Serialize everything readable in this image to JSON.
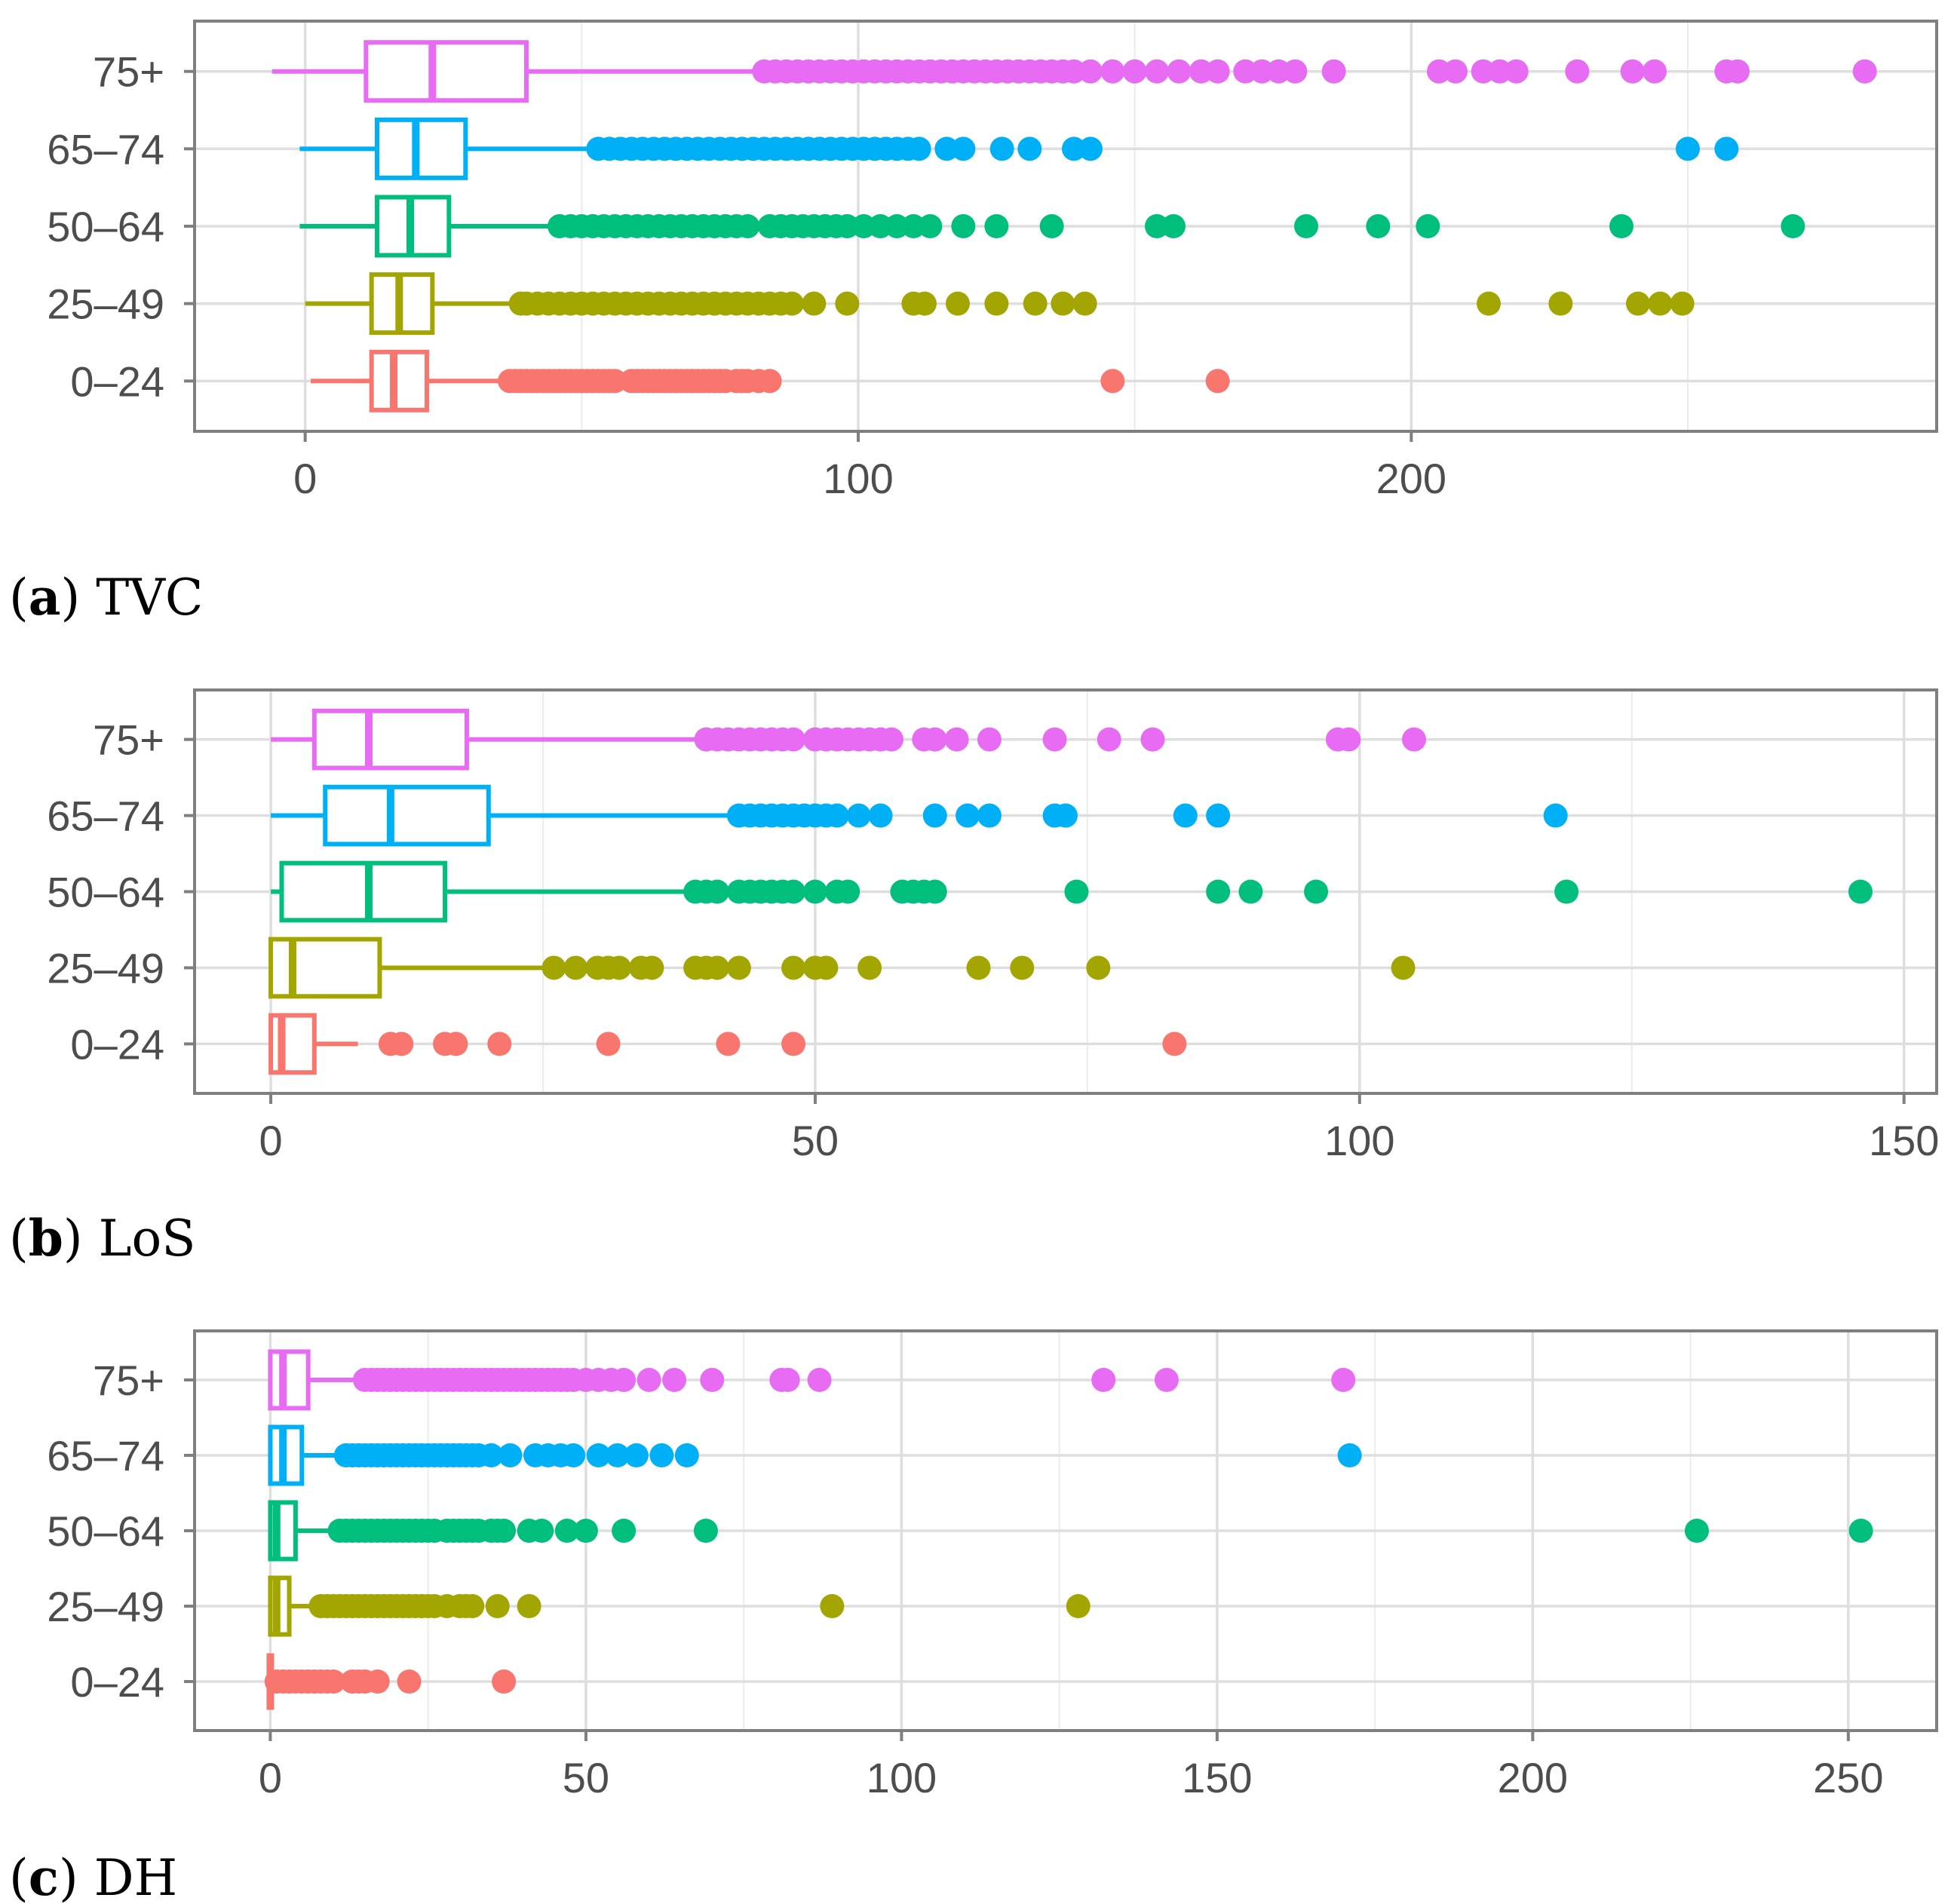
{
  "figure_colors": {
    "0-24": "#F8766D",
    "25-49": "#A3A500",
    "50-64": "#00BF7D",
    "65-74": "#00B0F6",
    "75+": "#E76BF3"
  },
  "chart_data": [
    {
      "type": "boxplot",
      "orientation": "horizontal",
      "caption_letter": "(a)",
      "caption_text": "TVC",
      "xlim": [
        -20,
        295
      ],
      "x_ticks": [
        0,
        100,
        200
      ],
      "x_tick_labels": [
        "0",
        "100",
        "200"
      ],
      "x_minor": [
        50,
        150,
        250
      ],
      "categories": [
        "0–24",
        "25–49",
        "50–64",
        "65–74",
        "75+"
      ],
      "series": [
        {
          "name": "0–24",
          "whisker_low": 1,
          "q1": 12,
          "median": 16,
          "q3": 22,
          "whisker_high": 36,
          "outliers": [
            37,
            38,
            39,
            40,
            41,
            42,
            43,
            44,
            45,
            46,
            47,
            48,
            49,
            50,
            51,
            52,
            53,
            54,
            55,
            56,
            59,
            60,
            61,
            62,
            63,
            64,
            65,
            66,
            67,
            68,
            69,
            70,
            71,
            72,
            73,
            74,
            75,
            76,
            78,
            79,
            80,
            82,
            84,
            146,
            165
          ]
        },
        {
          "name": "25–49",
          "whisker_low": 0,
          "q1": 12,
          "median": 17,
          "q3": 23,
          "whisker_high": 38,
          "outliers": [
            39,
            40,
            42,
            44,
            46,
            48,
            50,
            52,
            54,
            56,
            58,
            60,
            62,
            64,
            66,
            68,
            70,
            72,
            74,
            76,
            78,
            80,
            82,
            84,
            86,
            88,
            92,
            98,
            110,
            112,
            118,
            125,
            132,
            137,
            141,
            214,
            227,
            241,
            245,
            249
          ]
        },
        {
          "name": "50–64",
          "whisker_low": -1,
          "q1": 13,
          "median": 19,
          "q3": 26,
          "whisker_high": 45,
          "outliers": [
            46,
            48,
            50,
            52,
            54,
            56,
            58,
            60,
            62,
            64,
            66,
            68,
            70,
            72,
            74,
            76,
            78,
            80,
            84,
            86,
            88,
            90,
            92,
            94,
            96,
            98,
            101,
            104,
            107,
            110,
            113,
            119,
            125,
            135,
            154,
            157,
            181,
            194,
            203,
            238,
            269
          ]
        },
        {
          "name": "65–74",
          "whisker_low": -1,
          "q1": 13,
          "median": 20,
          "q3": 29,
          "whisker_high": 52,
          "outliers": [
            53,
            55,
            57,
            59,
            61,
            63,
            65,
            67,
            69,
            71,
            73,
            75,
            77,
            79,
            81,
            83,
            85,
            87,
            89,
            91,
            93,
            95,
            97,
            99,
            101,
            103,
            105,
            107,
            109,
            111,
            116,
            119,
            126,
            131,
            139,
            142,
            250,
            257
          ]
        },
        {
          "name": "75+",
          "whisker_low": -6,
          "q1": 11,
          "median": 23,
          "q3": 40,
          "whisker_high": 82,
          "outliers": [
            83,
            85,
            87,
            89,
            91,
            93,
            95,
            97,
            99,
            101,
            103,
            105,
            107,
            109,
            111,
            113,
            115,
            117,
            119,
            121,
            123,
            125,
            127,
            129,
            131,
            133,
            135,
            137,
            139,
            142,
            146,
            150,
            154,
            158,
            162,
            165,
            170,
            173,
            176,
            179,
            186,
            205,
            208,
            213,
            216,
            219,
            230,
            240,
            244,
            257,
            259,
            282
          ]
        }
      ]
    },
    {
      "type": "boxplot",
      "orientation": "horizontal",
      "caption_letter": "(b)",
      "caption_text": "LoS",
      "xlim": [
        -7,
        153
      ],
      "x_ticks": [
        0,
        50,
        100,
        150
      ],
      "x_tick_labels": [
        "0",
        "50",
        "100",
        "150"
      ],
      "x_minor": [
        25,
        75,
        125
      ],
      "categories": [
        "0–24",
        "25–49",
        "50–64",
        "65–74",
        "75+"
      ],
      "series": [
        {
          "name": "0–24",
          "whisker_low": 0,
          "q1": 0,
          "median": 1,
          "q3": 4,
          "whisker_high": 8,
          "outliers": [
            11,
            12,
            16,
            17,
            21,
            31,
            42,
            48,
            83
          ]
        },
        {
          "name": "25–49",
          "whisker_low": 0,
          "q1": 0,
          "median": 2,
          "q3": 10,
          "whisker_high": 25,
          "outliers": [
            26,
            28,
            30,
            31,
            32,
            34,
            35,
            39,
            40,
            41,
            43,
            48,
            50,
            51,
            55,
            65,
            69,
            76,
            104
          ]
        },
        {
          "name": "50–64",
          "whisker_low": 0,
          "q1": 1,
          "median": 9,
          "q3": 16,
          "whisker_high": 38,
          "outliers": [
            39,
            40,
            41,
            43,
            44,
            45,
            46,
            47,
            48,
            50,
            52,
            53,
            58,
            59,
            60,
            61,
            74,
            87,
            90,
            96,
            119,
            146
          ]
        },
        {
          "name": "65–74",
          "whisker_low": 0,
          "q1": 5,
          "median": 11,
          "q3": 20,
          "whisker_high": 42,
          "outliers": [
            43,
            44,
            45,
            46,
            47,
            48,
            49,
            50,
            51,
            52,
            54,
            56,
            61,
            64,
            66,
            72,
            73,
            84,
            87,
            118
          ]
        },
        {
          "name": "75+",
          "whisker_low": 0,
          "q1": 4,
          "median": 9,
          "q3": 18,
          "whisker_high": 39,
          "outliers": [
            40,
            41,
            42,
            43,
            44,
            45,
            46,
            47,
            48,
            50,
            51,
            52,
            53,
            54,
            55,
            56,
            57,
            60,
            61,
            63,
            66,
            72,
            77,
            81,
            98,
            99,
            105
          ]
        }
      ]
    },
    {
      "type": "boxplot",
      "orientation": "horizontal",
      "caption_letter": "(c)",
      "caption_text": "DH",
      "xlim": [
        -12,
        264
      ],
      "x_ticks": [
        0,
        50,
        100,
        150,
        200,
        250
      ],
      "x_tick_labels": [
        "0",
        "50",
        "100",
        "150",
        "200",
        "250"
      ],
      "x_minor": [
        25,
        75,
        125,
        175,
        225
      ],
      "categories": [
        "0–24",
        "25–49",
        "50–64",
        "65–74",
        "75+"
      ],
      "series": [
        {
          "name": "0–24",
          "whisker_low": 0,
          "q1": 0,
          "median": 0,
          "q3": 0,
          "whisker_high": 0,
          "outliers": [
            1,
            2,
            3,
            4,
            5,
            6,
            7,
            8,
            9,
            10,
            13,
            14,
            15,
            17,
            22,
            37
          ]
        },
        {
          "name": "25–49",
          "whisker_low": 0,
          "q1": 0,
          "median": 1,
          "q3": 3,
          "whisker_high": 7,
          "outliers": [
            8,
            9,
            10,
            11,
            12,
            13,
            14,
            15,
            16,
            17,
            18,
            19,
            20,
            21,
            22,
            23,
            24,
            25,
            26,
            28,
            30,
            31,
            32,
            36,
            41,
            89,
            128
          ]
        },
        {
          "name": "50–64",
          "whisker_low": 0,
          "q1": 0,
          "median": 1,
          "q3": 4,
          "whisker_high": 10,
          "outliers": [
            11,
            12,
            13,
            14,
            15,
            16,
            17,
            18,
            19,
            20,
            21,
            22,
            23,
            24,
            25,
            26,
            28,
            29,
            30,
            31,
            32,
            33,
            35,
            36,
            37,
            41,
            43,
            47,
            50,
            56,
            69,
            226,
            252
          ]
        },
        {
          "name": "65–74",
          "whisker_low": 0,
          "q1": 0,
          "median": 2,
          "q3": 5,
          "whisker_high": 11,
          "outliers": [
            12,
            13,
            14,
            15,
            16,
            17,
            18,
            19,
            20,
            21,
            22,
            23,
            24,
            25,
            26,
            27,
            28,
            29,
            30,
            31,
            32,
            33,
            35,
            38,
            42,
            44,
            46,
            48,
            52,
            55,
            58,
            62,
            66,
            171
          ]
        },
        {
          "name": "75+",
          "whisker_low": 0,
          "q1": 0,
          "median": 2,
          "q3": 6,
          "whisker_high": 14,
          "outliers": [
            15,
            16,
            17,
            18,
            19,
            20,
            21,
            22,
            23,
            24,
            25,
            26,
            27,
            28,
            29,
            30,
            31,
            32,
            33,
            34,
            35,
            36,
            37,
            38,
            39,
            40,
            41,
            42,
            43,
            44,
            45,
            46,
            47,
            48,
            50,
            52,
            54,
            56,
            60,
            64,
            70,
            81,
            82,
            87,
            132,
            142,
            170
          ]
        }
      ]
    }
  ]
}
